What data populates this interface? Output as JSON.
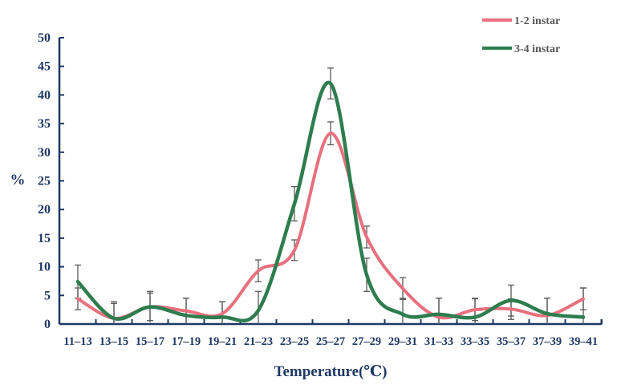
{
  "chart_data": {
    "type": "line",
    "title": "",
    "xlabel": "Temperature(℃)",
    "ylabel": "%",
    "ylim": [
      0,
      50
    ],
    "yticks": [
      0,
      5,
      10,
      15,
      20,
      25,
      30,
      35,
      40,
      45,
      50
    ],
    "grid": false,
    "legend_position": "top-right",
    "smooth": true,
    "error_bars": true,
    "categories": [
      "11–13",
      "13–15",
      "15–17",
      "17–19",
      "19–21",
      "21–23",
      "23–25",
      "25–27",
      "27–29",
      "29–31",
      "31–33",
      "33–35",
      "35–37",
      "37–39",
      "39–41"
    ],
    "series": [
      {
        "name": "1-2 instar",
        "color": "#e8707e",
        "values": [
          4.4,
          1.0,
          3.0,
          2.3,
          1.8,
          9.3,
          12.9,
          33.3,
          15.2,
          6.2,
          1.2,
          2.5,
          2.6,
          1.5,
          4.4
        ],
        "errors": [
          1.9,
          2.9,
          2.7,
          2.2,
          2.1,
          1.9,
          1.8,
          2.0,
          1.9,
          1.9,
          3.3,
          1.9,
          1.8,
          3.0,
          1.9
        ]
      },
      {
        "name": "3-4 instar",
        "color": "#2e7d4f",
        "values": [
          7.4,
          1.0,
          3.0,
          1.5,
          1.2,
          2.4,
          21.0,
          42.0,
          8.6,
          1.7,
          1.7,
          1.2,
          4.1,
          1.8,
          1.2
        ],
        "errors": [
          2.9,
          2.6,
          2.4,
          3.0,
          2.7,
          3.3,
          3.0,
          2.7,
          2.9,
          2.8,
          2.8,
          3.3,
          2.7,
          2.7,
          5.1
        ]
      }
    ]
  },
  "legend": {
    "items": [
      {
        "label": "1-2 instar",
        "color": "#e8707e"
      },
      {
        "label": "3-4 instar",
        "color": "#2e7d4f"
      }
    ]
  },
  "axes": {
    "y_title": "%",
    "x_title": "Temperature(℃)",
    "axis_color": "#1f3864",
    "error_bar_color": "#595959"
  }
}
